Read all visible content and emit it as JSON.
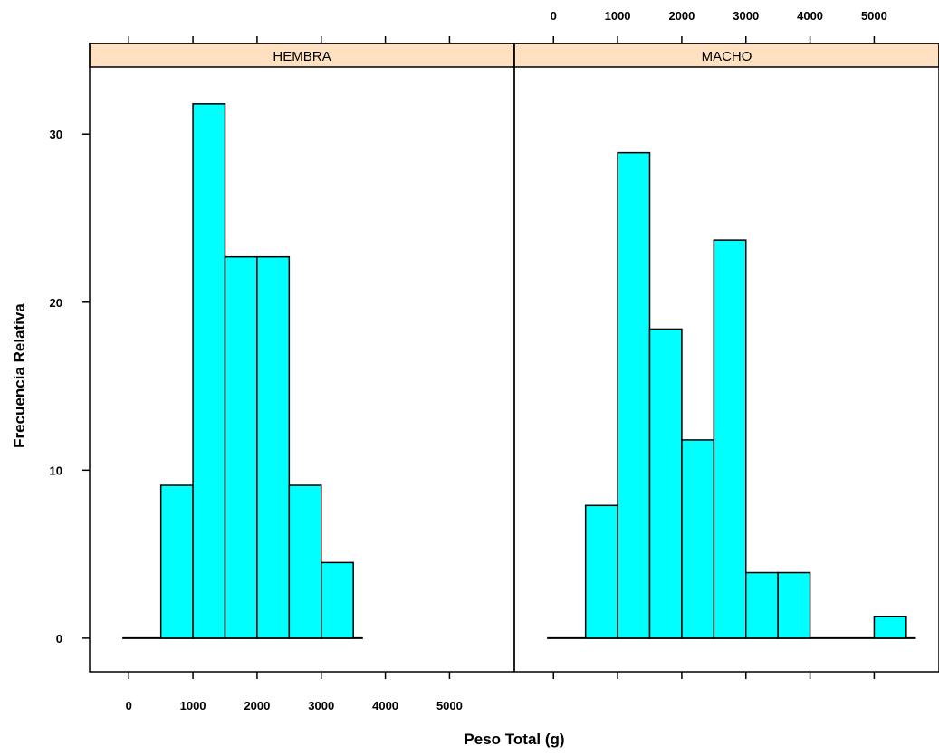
{
  "chart_data": {
    "type": "bar",
    "xlabel": "Peso Total (g)",
    "ylabel": "Frecuencia Relativa",
    "x_ticks": [
      0,
      1000,
      2000,
      3000,
      4000,
      5000
    ],
    "y_ticks": [
      0,
      10,
      20,
      30
    ],
    "xlim": [
      -300,
      5700
    ],
    "ylim": [
      -2,
      34
    ],
    "bar_color": "#00ffff",
    "strip_color": "#ffe0c0",
    "panels": [
      {
        "name": "HEMBRA",
        "bins": [
          {
            "x0": 500,
            "x1": 1000,
            "value": 9.1
          },
          {
            "x0": 1000,
            "x1": 1500,
            "value": 31.8
          },
          {
            "x0": 1500,
            "x1": 2000,
            "value": 22.7
          },
          {
            "x0": 2000,
            "x1": 2500,
            "value": 22.7
          },
          {
            "x0": 2500,
            "x1": 3000,
            "value": 9.1
          },
          {
            "x0": 3000,
            "x1": 3500,
            "value": 4.5
          }
        ]
      },
      {
        "name": "MACHO",
        "bins": [
          {
            "x0": 500,
            "x1": 1000,
            "value": 7.9
          },
          {
            "x0": 1000,
            "x1": 1500,
            "value": 28.9
          },
          {
            "x0": 1500,
            "x1": 2000,
            "value": 18.4
          },
          {
            "x0": 2000,
            "x1": 2500,
            "value": 11.8
          },
          {
            "x0": 2500,
            "x1": 3000,
            "value": 23.7
          },
          {
            "x0": 3000,
            "x1": 3500,
            "value": 3.9
          },
          {
            "x0": 3500,
            "x1": 4000,
            "value": 3.9
          },
          {
            "x0": 4000,
            "x1": 4500,
            "value": 0
          },
          {
            "x0": 4500,
            "x1": 5000,
            "value": 0
          },
          {
            "x0": 5000,
            "x1": 5500,
            "value": 1.3
          }
        ]
      }
    ]
  }
}
